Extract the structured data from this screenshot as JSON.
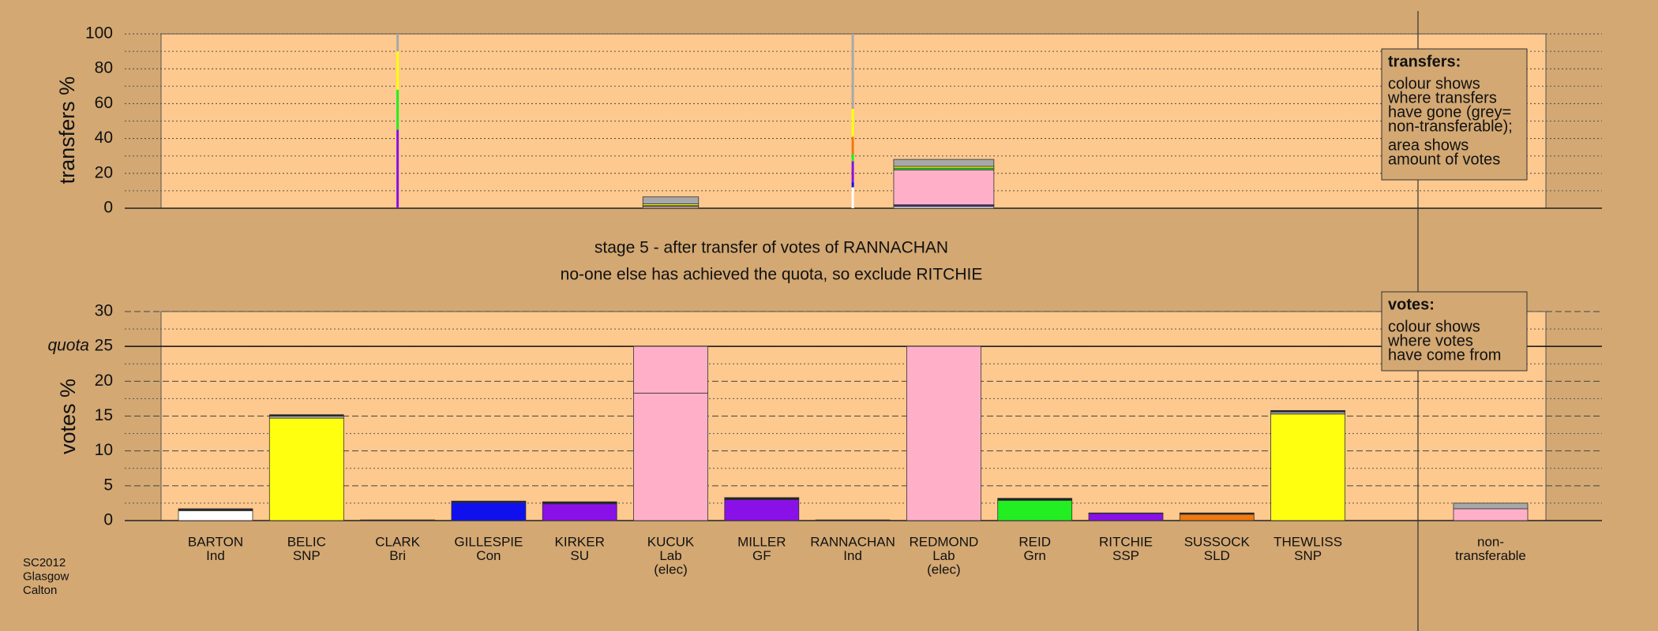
{
  "chart_data": [
    {
      "type": "bar",
      "stacked": true,
      "ylabel": "transfers %",
      "ylim": [
        0,
        100
      ],
      "yticks": [
        0,
        20,
        40,
        60,
        80,
        100
      ],
      "grid_yticks": [
        10,
        30,
        50,
        70,
        90
      ],
      "widths": [
        null,
        null,
        0,
        null,
        null,
        0.75,
        null,
        0,
        1.35,
        null,
        null,
        null,
        null
      ],
      "series": [
        {
          "color": "#ffffff",
          "values": [
            null,
            null,
            null,
            null,
            null,
            null,
            null,
            12,
            1,
            null,
            null,
            null,
            null
          ]
        },
        {
          "color": "#1010ee",
          "values": [
            null,
            null,
            null,
            null,
            null,
            null,
            null,
            3,
            0.5,
            null,
            null,
            null,
            null
          ]
        },
        {
          "color": "#8a10e8",
          "values": [
            null,
            null,
            45,
            null,
            null,
            null,
            null,
            12,
            0.5,
            null,
            null,
            null,
            null
          ]
        },
        {
          "color": "#ffb0c8",
          "values": [
            null,
            null,
            null,
            null,
            null,
            1,
            null,
            null,
            20,
            null,
            null,
            null,
            null
          ]
        },
        {
          "color": "#22ee22",
          "values": [
            null,
            null,
            23,
            null,
            null,
            0.5,
            null,
            4,
            1,
            null,
            null,
            null,
            null
          ]
        },
        {
          "color": "#ee7a10",
          "values": [
            null,
            null,
            null,
            null,
            null,
            null,
            null,
            10,
            null,
            null,
            null,
            null,
            null
          ]
        },
        {
          "color": "#ffff10",
          "values": [
            null,
            null,
            22,
            null,
            null,
            1,
            null,
            16,
            1,
            null,
            null,
            null,
            null
          ]
        },
        {
          "color": "#a8a8a8",
          "values": [
            null,
            null,
            10,
            null,
            null,
            4,
            null,
            43,
            4,
            null,
            null,
            null,
            null
          ]
        }
      ]
    },
    {
      "type": "bar",
      "stacked": true,
      "ylabel": "votes %",
      "ylim": [
        0,
        30
      ],
      "yticks": [
        0,
        5,
        10,
        15,
        20,
        25,
        30
      ],
      "grid_yticks": [
        2.5,
        7.5,
        12.5,
        17.5,
        22.5,
        27.5
      ],
      "quota": {
        "value": 25,
        "label": "quota"
      },
      "categories": [
        [
          "BARTON",
          "Ind"
        ],
        [
          "BELIC",
          "SNP"
        ],
        [
          "CLARK",
          "Bri"
        ],
        [
          "GILLESPIE",
          "Con"
        ],
        [
          "KIRKER",
          "SU"
        ],
        [
          "KUCUK",
          "Lab",
          "(elec)"
        ],
        [
          "MILLER",
          "GF"
        ],
        [
          "RANNACHAN",
          "Ind"
        ],
        [
          "REDMOND",
          "Lab",
          "(elec)"
        ],
        [
          "REID",
          "Grn"
        ],
        [
          "RITCHIE",
          "SSP"
        ],
        [
          "SUSSOCK",
          "SLD"
        ],
        [
          "THEWLISS",
          "SNP"
        ],
        [
          "non-",
          "transferable"
        ]
      ],
      "series": [
        {
          "color": "#ffffff",
          "values": [
            1.4,
            null,
            null,
            null,
            null,
            null,
            null,
            null,
            null,
            null,
            null,
            null,
            null,
            null
          ]
        },
        {
          "color": "#ffff10",
          "values": [
            null,
            14.7,
            null,
            null,
            null,
            null,
            null,
            null,
            null,
            null,
            null,
            null,
            15.3,
            null
          ]
        },
        {
          "color": "#1010ee",
          "values": [
            null,
            null,
            null,
            2.6,
            null,
            null,
            null,
            null,
            null,
            null,
            null,
            null,
            null,
            null
          ]
        },
        {
          "color": "#8a10e8",
          "values": [
            null,
            null,
            null,
            null,
            2.4,
            null,
            3.0,
            null,
            null,
            null,
            1.0,
            null,
            null,
            null
          ]
        },
        {
          "color": "#ffb0c8",
          "values": [
            null,
            null,
            null,
            null,
            null,
            18.3,
            null,
            null,
            25,
            null,
            null,
            null,
            null,
            1.7
          ]
        },
        {
          "color": "#ffb0c8",
          "values": [
            null,
            null,
            null,
            null,
            null,
            6.7,
            null,
            null,
            null,
            null,
            null,
            null,
            null,
            null
          ]
        },
        {
          "color": "#22ee22",
          "values": [
            null,
            null,
            null,
            null,
            null,
            null,
            null,
            null,
            null,
            2.9,
            null,
            null,
            null,
            null
          ]
        },
        {
          "color": "#ee7a10",
          "values": [
            null,
            null,
            null,
            null,
            null,
            null,
            null,
            null,
            null,
            null,
            null,
            0.9,
            null,
            null
          ]
        },
        {
          "color": "#a8a8a8",
          "values": [
            0.1,
            0.3,
            null,
            null,
            null,
            null,
            null,
            null,
            null,
            null,
            null,
            null,
            0.3,
            0.8
          ]
        },
        {
          "color": "#222222",
          "values": [
            0.2,
            0.2,
            0.1,
            0.2,
            0.3,
            null,
            0.3,
            0.1,
            null,
            0.3,
            0.1,
            0.2,
            0.2,
            null
          ]
        }
      ]
    }
  ],
  "stage_text": [
    "stage 5 - after transfer of votes of RANNACHAN",
    "no-one else has achieved the quota, so exclude RITCHIE"
  ],
  "notes": {
    "transfers": {
      "heading": "transfers:",
      "lines": [
        "colour shows",
        "where transfers",
        "have gone (grey=",
        "non-transferable);",
        "area shows",
        "amount of votes"
      ]
    },
    "votes": {
      "heading": "votes:",
      "lines": [
        "colour shows",
        "where votes",
        "have come from"
      ]
    }
  },
  "footer": [
    "SC2012",
    "Glasgow",
    "Calton"
  ]
}
